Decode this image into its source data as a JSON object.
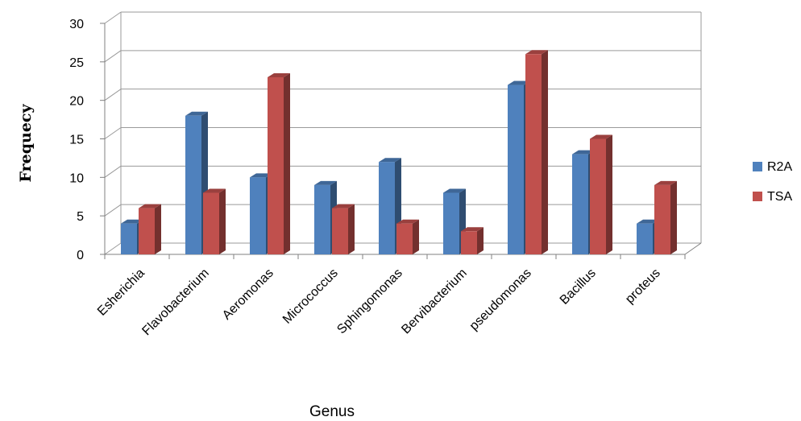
{
  "chart_data": {
    "type": "bar",
    "title": "",
    "xlabel": "Genus",
    "ylabel": "Frequecy",
    "categories": [
      "Esherichia",
      "Flavobacterium",
      "Aeromonas",
      "Micrococcus",
      "Sphingomonas",
      "Bervibacterium",
      "pseudomonas",
      "Bacillus",
      "proteus"
    ],
    "series": [
      {
        "name": "R2A",
        "values": [
          4,
          18,
          10,
          9,
          12,
          8,
          22,
          13,
          4
        ]
      },
      {
        "name": "TSA",
        "values": [
          6,
          8,
          23,
          6,
          4,
          3,
          26,
          15,
          9
        ]
      }
    ],
    "ylim": [
      0,
      30
    ],
    "yticks": [
      "0",
      "5",
      "10",
      "15",
      "20",
      "25",
      "30"
    ],
    "grid": true,
    "legend_position": "right",
    "colors": {
      "R2A": "#4F81BD",
      "TSA": "#C0504D"
    }
  }
}
